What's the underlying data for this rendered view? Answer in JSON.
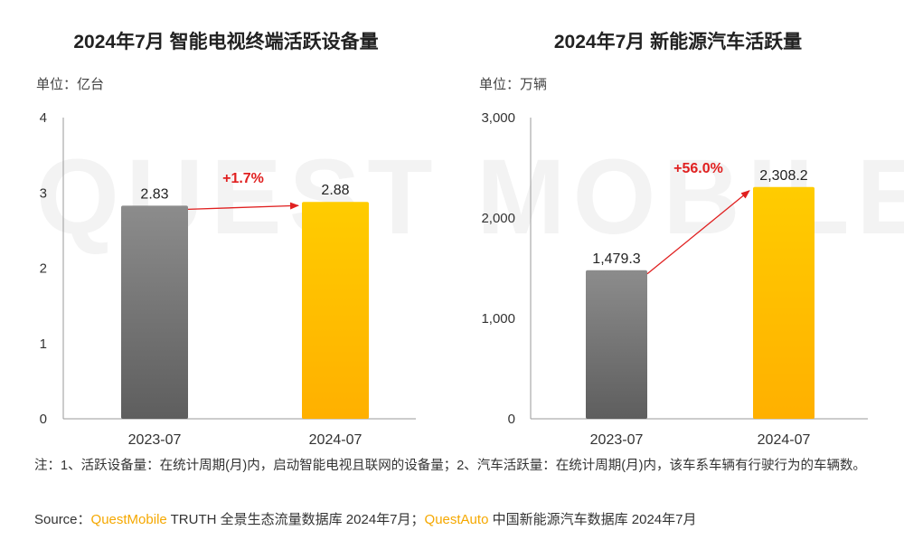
{
  "watermark": "QUEST MOBILE",
  "chart_data": [
    {
      "type": "bar",
      "title": "2024年7月 智能电视终端活跃设备量",
      "unit": "单位：亿台",
      "categories": [
        "2023-07",
        "2024-07"
      ],
      "values": [
        2.83,
        2.88
      ],
      "value_labels": [
        "2.83",
        "2.88"
      ],
      "ylim": [
        0,
        4
      ],
      "yticks": [
        0,
        1,
        2,
        3,
        4
      ],
      "ytick_labels": [
        "0",
        "1",
        "2",
        "3",
        "4"
      ],
      "growth_label": "+1.7%",
      "colors": [
        "#7a7a7a",
        "#ffc000"
      ],
      "growth_color": "#e02020",
      "grid": false
    },
    {
      "type": "bar",
      "title": "2024年7月 新能源汽车活跃量",
      "unit": "单位：万辆",
      "categories": [
        "2023-07",
        "2024-07"
      ],
      "values": [
        1479.3,
        2308.2
      ],
      "value_labels": [
        "1,479.3",
        "2,308.2"
      ],
      "ylim": [
        0,
        3000
      ],
      "yticks": [
        0,
        1000,
        2000,
        3000
      ],
      "ytick_labels": [
        "0",
        "1,000",
        "2,000",
        "3,000"
      ],
      "growth_label": "+56.0%",
      "colors": [
        "#7a7a7a",
        "#ffc000"
      ],
      "growth_color": "#e02020",
      "grid": false
    }
  ],
  "footer": {
    "note": "注：1、活跃设备量：在统计周期(月)内，启动智能电视且联网的设备量；2、汽车活跃量：在统计周期(月)内，该车系车辆有行驶行为的车辆数。",
    "source_prefix": "Source：",
    "source_brand1": "QuestMobile",
    "source_text1": " TRUTH 全景生态流量数据库 2024年7月；",
    "source_brand2": "QuestAuto",
    "source_text2": " 中国新能源汽车数据库 2024年7月"
  }
}
